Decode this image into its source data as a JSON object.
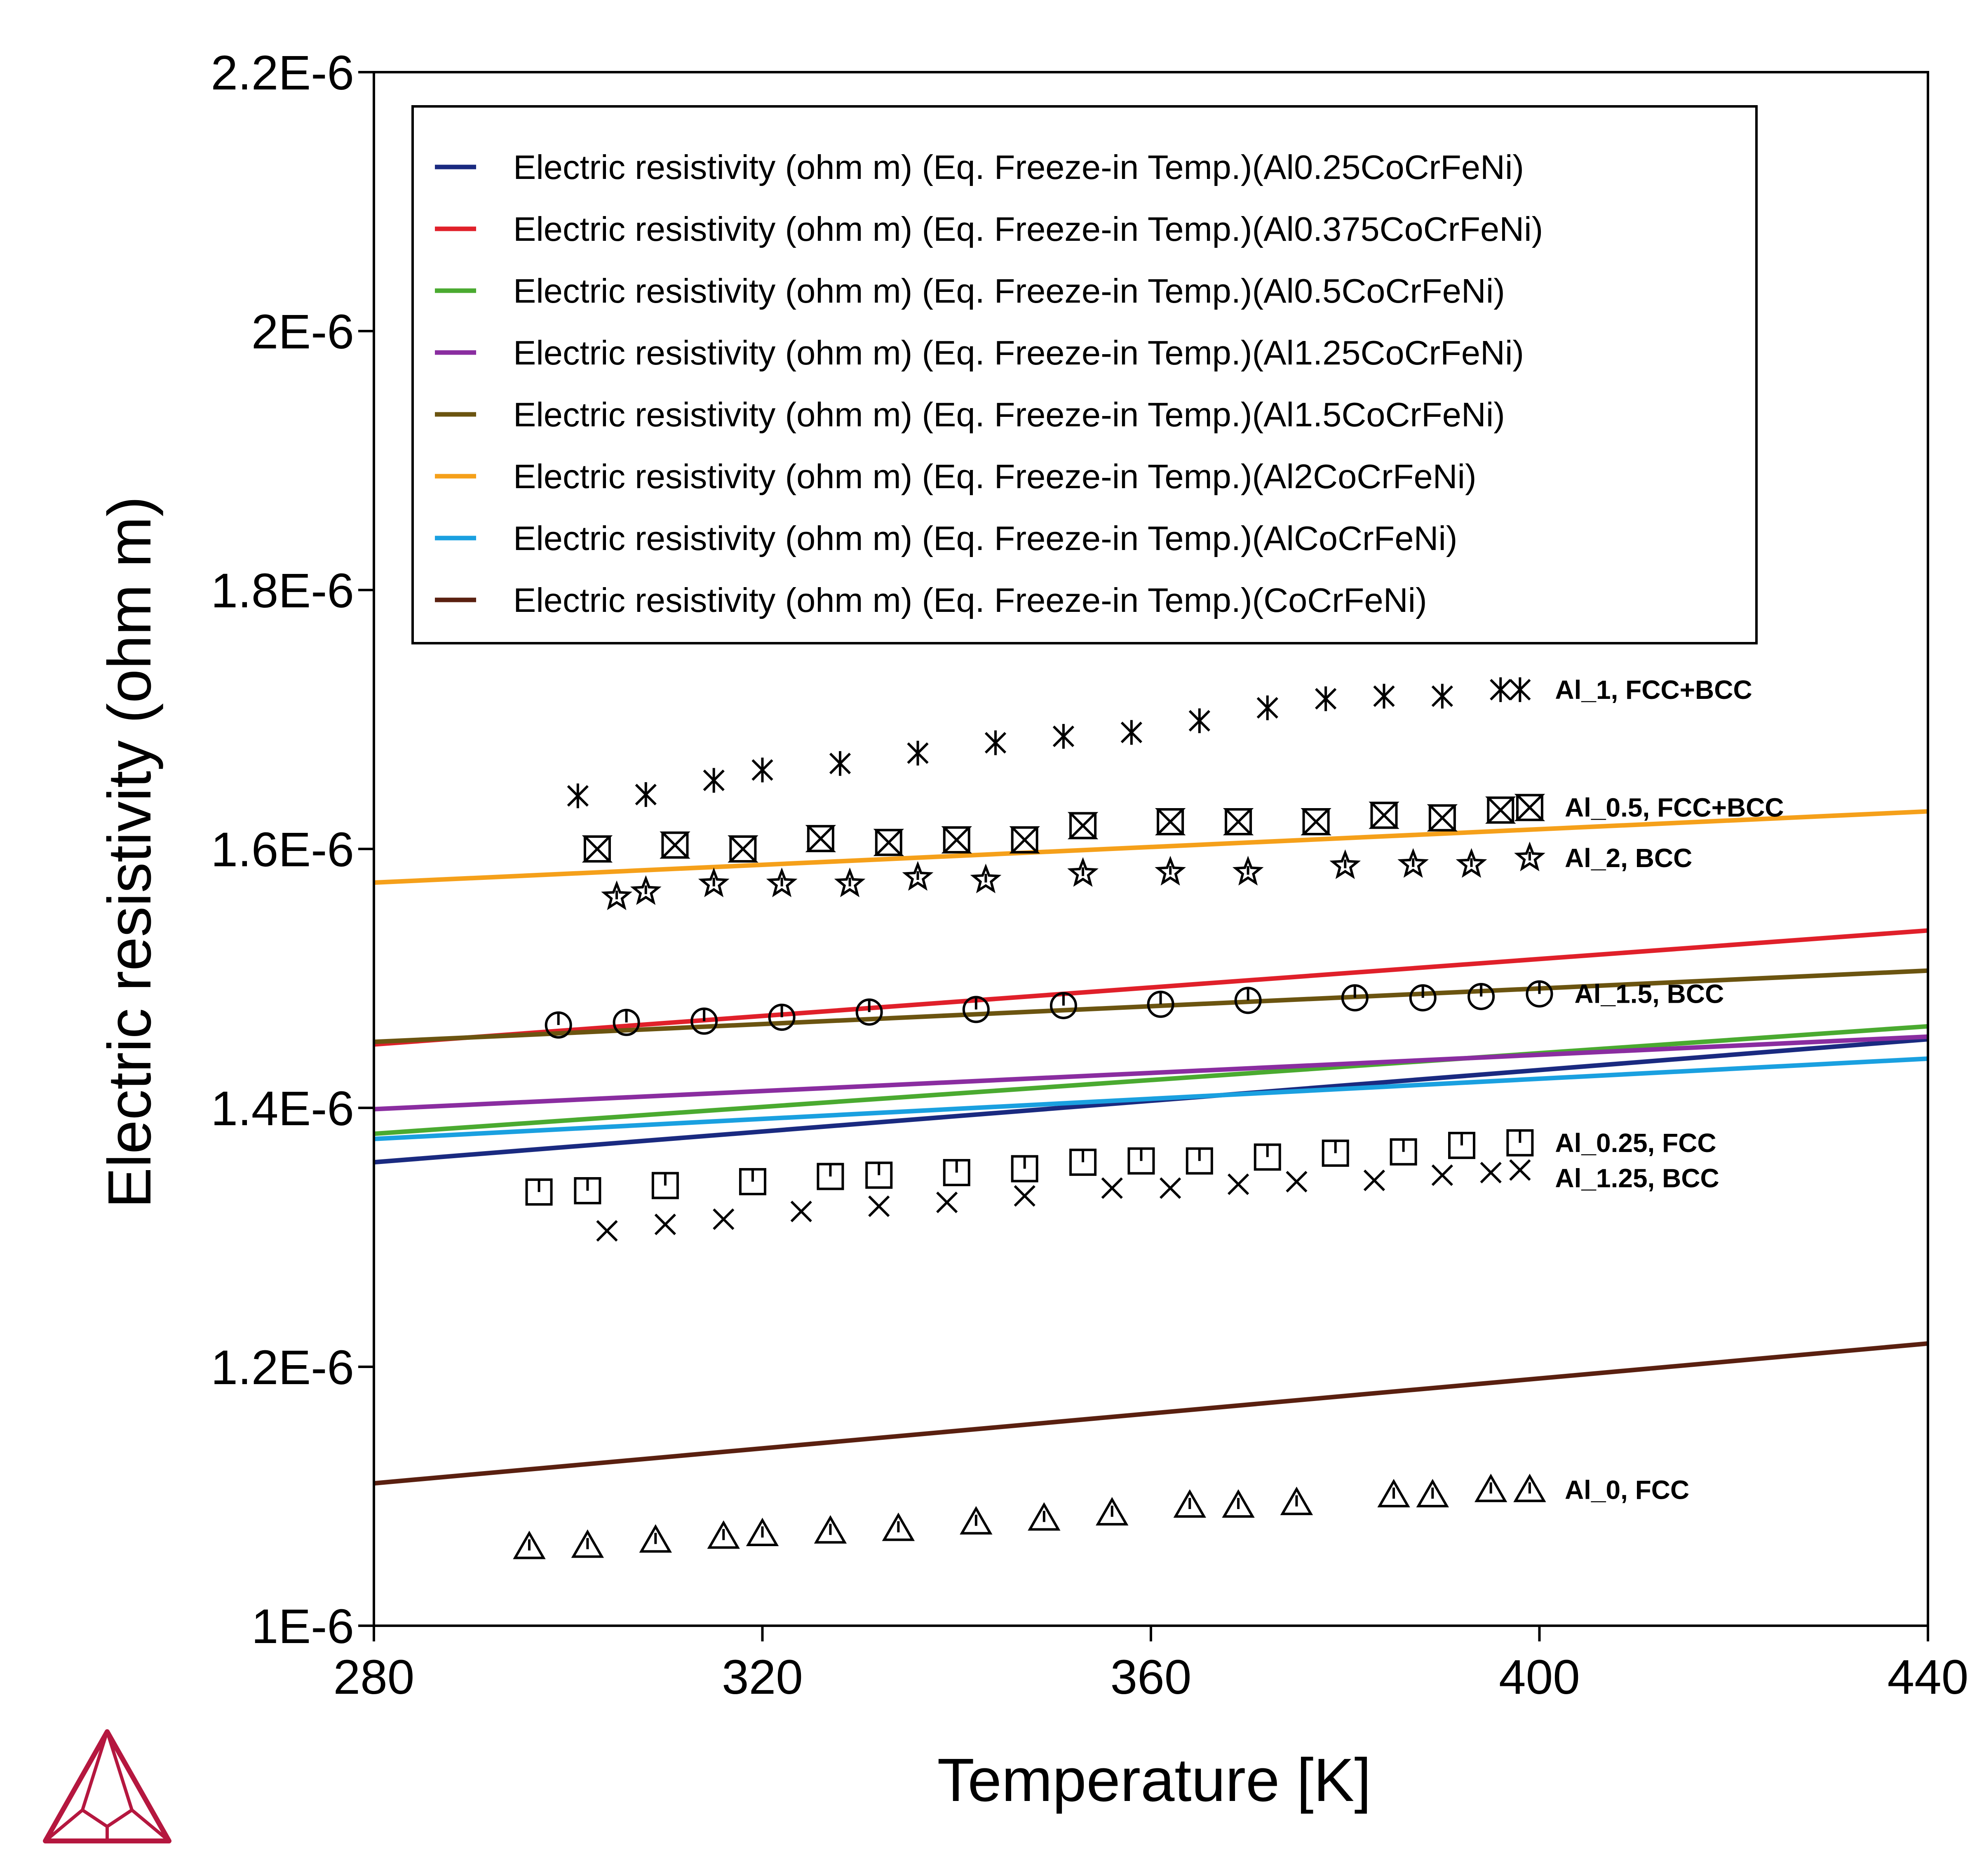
{
  "chart_data": {
    "type": "line",
    "xlabel": "Temperature [K]",
    "ylabel": "Electric resistivity (ohm m)",
    "xlim": [
      280,
      440
    ],
    "ylim": [
      1e-06,
      2.2e-06
    ],
    "x_ticks": [
      280,
      320,
      360,
      400,
      440
    ],
    "x_tick_labels": [
      "280",
      "320",
      "360",
      "400",
      "440"
    ],
    "y_ticks": [
      1e-06,
      1.2e-06,
      1.4e-06,
      1.6e-06,
      1.8e-06,
      2e-06,
      2.2e-06
    ],
    "y_tick_labels": [
      "1E-6",
      "1.2E-6",
      "1.4E-6",
      "1.6E-6",
      "1.8E-6",
      "2E-6",
      "2.2E-6"
    ],
    "grid": false,
    "legend_position": "top",
    "series": [
      {
        "name": "Electric resistivity (ohm m) (Eq. Freeze-in Temp.)(Al0.25CoCrFeNi)",
        "color": "#1a2a80",
        "x": [
          280,
          440
        ],
        "y": [
          1.358e-06,
          1.453e-06
        ]
      },
      {
        "name": "Electric resistivity (ohm m) (Eq. Freeze-in Temp.)(Al0.375CoCrFeNi)",
        "color": "#e0202a",
        "x": [
          280,
          440
        ],
        "y": [
          1.449e-06,
          1.537e-06
        ]
      },
      {
        "name": "Electric resistivity (ohm m) (Eq. Freeze-in Temp.)(Al0.5CoCrFeNi)",
        "color": "#4aaa30",
        "x": [
          280,
          440
        ],
        "y": [
          1.38e-06,
          1.463e-06
        ]
      },
      {
        "name": "Electric resistivity (ohm m) (Eq. Freeze-in Temp.)(Al1.25CoCrFeNi)",
        "color": "#8a2da0",
        "x": [
          280,
          440
        ],
        "y": [
          1.399e-06,
          1.455e-06
        ]
      },
      {
        "name": "Electric resistivity (ohm m) (Eq. Freeze-in Temp.)(Al1.5CoCrFeNi)",
        "color": "#6b5410",
        "x": [
          280,
          440
        ],
        "y": [
          1.451e-06,
          1.506e-06
        ]
      },
      {
        "name": "Electric resistivity (ohm m) (Eq. Freeze-in Temp.)(Al2CoCrFeNi)",
        "color": "#f5a01a",
        "x": [
          280,
          440
        ],
        "y": [
          1.574e-06,
          1.629e-06
        ]
      },
      {
        "name": "Electric resistivity (ohm m) (Eq. Freeze-in Temp.)(AlCoCrFeNi)",
        "color": "#1aa0e0",
        "x": [
          280,
          440
        ],
        "y": [
          1.376e-06,
          1.438e-06
        ]
      },
      {
        "name": "Electric resistivity (ohm m) (Eq. Freeze-in Temp.)(CoCrFeNi)",
        "color": "#5a2010",
        "x": [
          280,
          440
        ],
        "y": [
          1.11e-06,
          1.218e-06
        ]
      }
    ],
    "experimental": [
      {
        "label": "Al_1, FCC+BCC",
        "marker": "asterisk",
        "x": [
          301,
          308,
          315,
          320,
          328,
          336,
          344,
          351,
          358,
          365,
          372,
          378,
          384,
          390,
          396,
          398
        ],
        "y": [
          1.641e-06,
          1.642e-06,
          1.653e-06,
          1.661e-06,
          1.666e-06,
          1.674e-06,
          1.682e-06,
          1.687e-06,
          1.69e-06,
          1.699e-06,
          1.709e-06,
          1.716e-06,
          1.718e-06,
          1.718e-06,
          1.723e-06,
          1.723e-06
        ]
      },
      {
        "label": "Al_0.5, FCC+BCC",
        "marker": "hourglass",
        "x": [
          303,
          311,
          318,
          326,
          333,
          340,
          347,
          353,
          362,
          369,
          377,
          384,
          390,
          396,
          399
        ],
        "y": [
          1.6e-06,
          1.603e-06,
          1.6e-06,
          1.608e-06,
          1.605e-06,
          1.607e-06,
          1.607e-06,
          1.618e-06,
          1.621e-06,
          1.621e-06,
          1.621e-06,
          1.626e-06,
          1.624e-06,
          1.63e-06,
          1.632e-06
        ]
      },
      {
        "label": "Al_2, BCC",
        "marker": "star",
        "x": [
          305,
          308,
          315,
          322,
          329,
          336,
          343,
          353,
          362,
          370,
          380,
          387,
          393,
          399
        ],
        "y": [
          1.563e-06,
          1.567e-06,
          1.573e-06,
          1.573e-06,
          1.573e-06,
          1.578e-06,
          1.576e-06,
          1.581e-06,
          1.582e-06,
          1.582e-06,
          1.587e-06,
          1.588e-06,
          1.588e-06,
          1.593e-06
        ]
      },
      {
        "label": "Al_1.5, BCC",
        "marker": "circle",
        "x": [
          299,
          306,
          314,
          322,
          331,
          342,
          351,
          361,
          370,
          381,
          388,
          394,
          400
        ],
        "y": [
          1.464e-06,
          1.466e-06,
          1.467e-06,
          1.47e-06,
          1.474e-06,
          1.476e-06,
          1.479e-06,
          1.48e-06,
          1.483e-06,
          1.485e-06,
          1.485e-06,
          1.486e-06,
          1.488e-06
        ]
      },
      {
        "label": "Al_0.25, FCC",
        "marker": "square",
        "x": [
          297,
          302,
          310,
          319,
          327,
          332,
          340,
          347,
          353,
          359,
          365,
          372,
          379,
          386,
          392,
          398
        ],
        "y": [
          1.335e-06,
          1.336e-06,
          1.34e-06,
          1.343e-06,
          1.347e-06,
          1.348e-06,
          1.35e-06,
          1.353e-06,
          1.358e-06,
          1.359e-06,
          1.359e-06,
          1.362e-06,
          1.365e-06,
          1.366e-06,
          1.371e-06,
          1.373e-06
        ]
      },
      {
        "label": "Al_1.25, BCC",
        "marker": "cross",
        "x": [
          304,
          310,
          316,
          324,
          332,
          339,
          347,
          356,
          362,
          369,
          375,
          383,
          390,
          395,
          398
        ],
        "y": [
          1.305e-06,
          1.31e-06,
          1.314e-06,
          1.32e-06,
          1.324e-06,
          1.327e-06,
          1.332e-06,
          1.338e-06,
          1.338e-06,
          1.341e-06,
          1.343e-06,
          1.344e-06,
          1.348e-06,
          1.35e-06,
          1.352e-06
        ]
      },
      {
        "label": "Al_0, FCC",
        "marker": "triangle",
        "x": [
          296,
          302,
          309,
          316,
          320,
          327,
          334,
          342,
          349,
          356,
          364,
          369,
          375,
          385,
          389,
          395,
          399
        ],
        "y": [
          1.061e-06,
          1.062e-06,
          1.066e-06,
          1.069e-06,
          1.071e-06,
          1.073e-06,
          1.075e-06,
          1.08e-06,
          1.083e-06,
          1.087e-06,
          1.093e-06,
          1.093e-06,
          1.095e-06,
          1.101e-06,
          1.101e-06,
          1.105e-06,
          1.105e-06
        ]
      }
    ]
  }
}
